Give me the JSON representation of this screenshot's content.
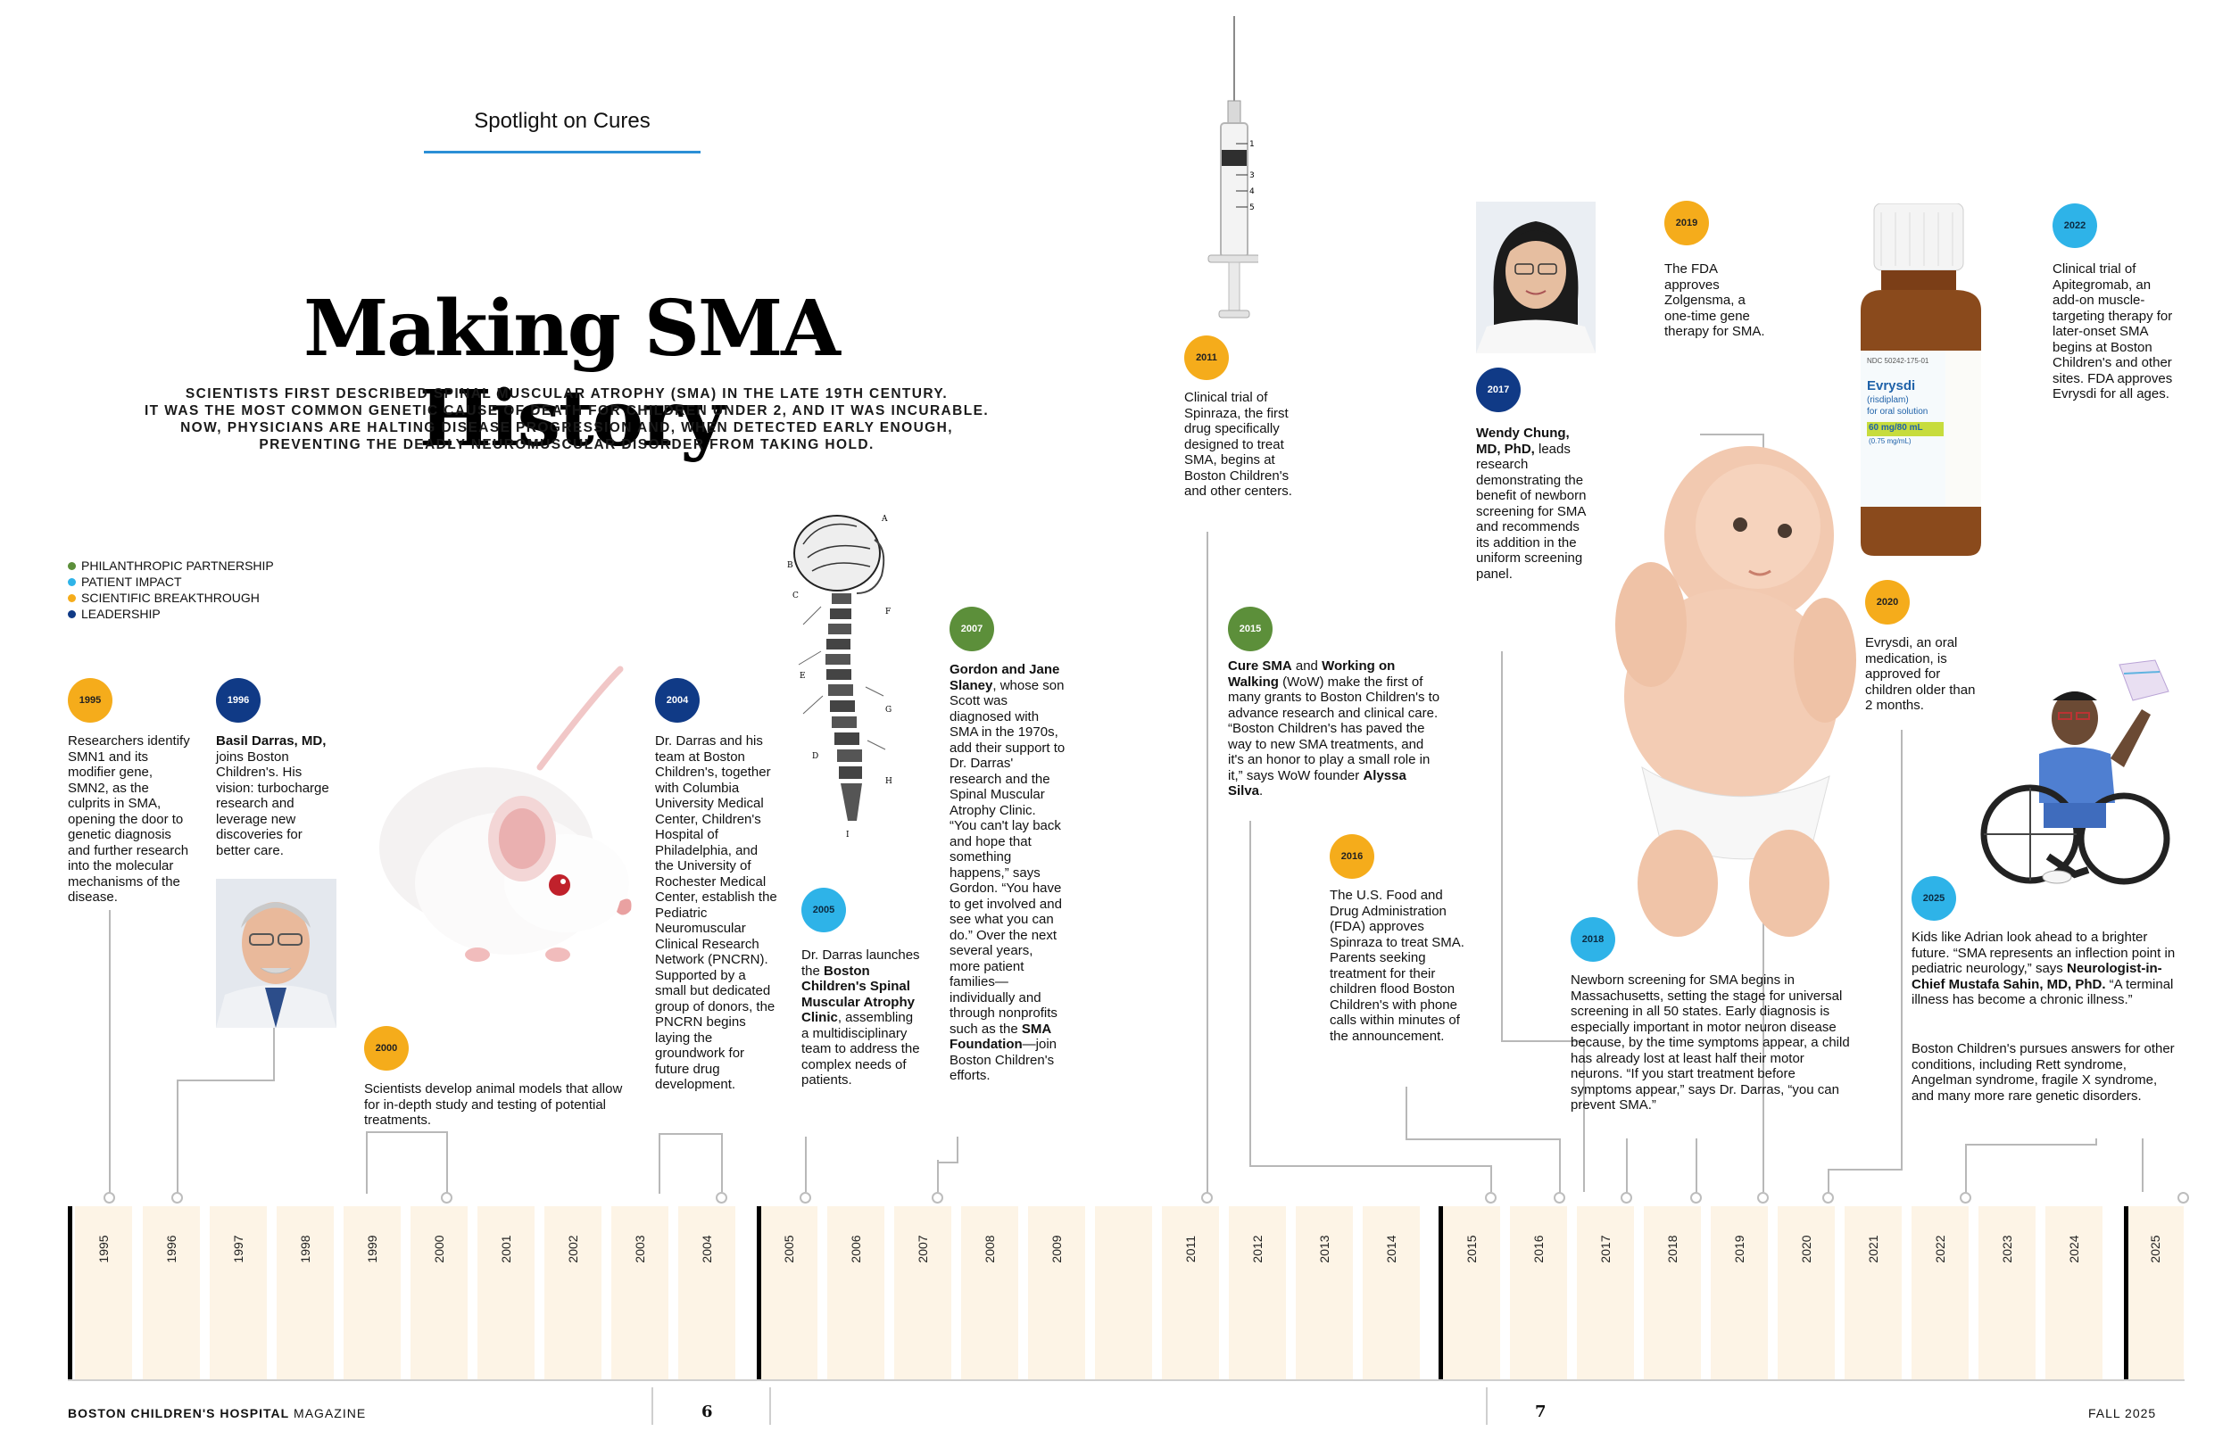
{
  "header": {
    "section": "Spotlight on Cures"
  },
  "title": "Making SMA History",
  "intro": {
    "line1_pre": "SCIENTISTS FIRST DESCRIBED ",
    "line1_bold": "SPINAL MUSCULAR ATROPHY",
    "line1_post": " (SMA) IN THE LATE 19TH CENTURY.",
    "line2": "IT WAS THE MOST COMMON GENETIC CAUSE OF DEATH FOR CHILDREN UNDER 2, AND IT WAS INCURABLE.",
    "line3": "NOW, PHYSICIANS ARE HALTING DISEASE PROGRESSION AND, WHEN DETECTED EARLY ENOUGH,",
    "line4": "PREVENTING THE DEADLY NEUROMUSCULAR DISORDER FROM TAKING HOLD."
  },
  "legend": [
    {
      "label": "PHILANTHROPIC PARTNERSHIP",
      "color": "#5c8f3a"
    },
    {
      "label": "PATIENT IMPACT",
      "color": "#2eb3e8"
    },
    {
      "label": "SCIENTIFIC BREAKTHROUGH",
      "color": "#f5ac1b"
    },
    {
      "label": "LEADERSHIP",
      "color": "#103a86"
    }
  ],
  "events": {
    "e1995": {
      "year": "1995",
      "text": "Researchers identify SMN1 and its modifier gene, SMN2, as the culprits in SMA, opening the door to genetic diagnosis and further research into the molecular mechanisms of the disease."
    },
    "e1996": {
      "year": "1996",
      "bold": "Basil Darras, MD,",
      "text": " joins Boston Children's. His vision: turbocharge research and leverage new discoveries for better care."
    },
    "e2000": {
      "year": "2000",
      "text": "Scientists develop animal models that allow for in-depth study and testing of potential treatments."
    },
    "e2004": {
      "year": "2004",
      "text": "Dr. Darras and his team at Boston Children's, together with Columbia University Medical Center, Children's Hospital of Philadelphia, and the University of Rochester Medical Center, establish the Pediatric Neuromuscular Clinical Research Network (PNCRN). Supported by a small but dedicated group of donors, the PNCRN begins laying the groundwork for future drug development."
    },
    "e2005": {
      "year": "2005",
      "pre": "Dr. Darras launches the ",
      "bold": "Boston Children's Spinal Muscular Atrophy Clinic",
      "post": ", assembling a multidisciplinary team to address the complex needs of patients."
    },
    "e2007": {
      "year": "2007",
      "bold": "Gordon and Jane Slaney",
      "pre": ", whose son Scott was diagnosed with SMA in the 1970s, add their support to Dr. Darras' research and the Spinal Muscular Atrophy Clinic. “You can't lay back and hope that something happens,” says Gordon. “You have to get involved and see what you can do.” Over the next several years, more patient families—individually and through nonprofits such as the ",
      "bold2": "SMA Foundation",
      "post": "—join Boston Children's efforts."
    },
    "e2011": {
      "year": "2011",
      "text": "Clinical trial of Spinraza, the first drug specifically designed to treat SMA, begins at Boston Children's and other centers."
    },
    "e2015": {
      "year": "2015",
      "bold": "Cure SMA",
      "mid": " and ",
      "bold2": "Working on Walking",
      "pre": " (WoW) make the first of many grants to Boston Children's to advance research and clinical care. “Boston Children's has paved the way to new SMA treatments, and it's an honor to play a small role in it,” says WoW founder ",
      "bold3": "Alyssa Silva",
      "post": "."
    },
    "e2016": {
      "year": "2016",
      "text": "The U.S. Food and Drug Administration (FDA) approves Spinraza to treat SMA. Parents seeking treatment for their children flood Boston Children's with phone calls within minutes of the announcement."
    },
    "e2017": {
      "year": "2017",
      "bold": "Wendy Chung, MD, PhD,",
      "text": " leads research demonstrating the benefit of newborn screening for SMA and recommends its addition in the uniform screening panel."
    },
    "e2018": {
      "year": "2018",
      "text": "Newborn screening for SMA begins in Massachusetts, setting the stage for universal screening in all 50 states. Early diagnosis is especially important in motor neuron disease because, by the time symptoms appear, a child has already lost at least half their motor neurons. “If you start treatment before symptoms appear,” says Dr. Darras, “you can prevent SMA.”"
    },
    "e2019": {
      "year": "2019",
      "text": "The FDA approves Zolgensma, a one-time gene therapy for SMA."
    },
    "e2020": {
      "year": "2020",
      "text": "Evrysdi, an oral medication, is approved for children older than 2 months."
    },
    "e2022": {
      "year": "2022",
      "text": "Clinical trial of Apitegromab, an add-on muscle-targeting therapy for later-onset SMA begins at Boston Children's and other sites. FDA approves Evrysdi for all ages."
    },
    "e2025": {
      "year": "2025",
      "pre": "Kids like Adrian look ahead to a brighter future. “SMA represents an inflection point in pediatric neurology,” says ",
      "bold": "Neurologist-in-Chief Mustafa Sahin, MD, PhD.",
      "post": " “A terminal illness has become a chronic illness.”",
      "p2": "Boston Children's pursues answers for other conditions, including Rett syndrome, Angelman syndrome, fragile X syndrome, and many more rare genetic disorders."
    }
  },
  "bottle": {
    "brand": "Evrysdi",
    "generic": "(risdiplam)",
    "form": "for oral solution",
    "dose": "60 mg/80 mL",
    "dose2": "(0.75 mg/mL)",
    "ndc": "NDC 50242-175-01"
  },
  "syringe_marks": [
    "1",
    "3",
    "4",
    "5"
  ],
  "spine_letters": [
    "A",
    "B",
    "C",
    "D",
    "E",
    "F",
    "G",
    "H",
    "I"
  ],
  "timeline_years": [
    "1995",
    "1996",
    "1997",
    "1998",
    "1999",
    "2000",
    "2001",
    "2002",
    "2003",
    "2004",
    "2005",
    "2006",
    "2007",
    "2008",
    "2009",
    "",
    "2011",
    "2012",
    "2013",
    "2014",
    "2015",
    "2016",
    "2017",
    "2018",
    "2019",
    "2020",
    "2021",
    "2022",
    "2023",
    "2024",
    "2025"
  ],
  "footer": {
    "magazine_bold": "BOSTON CHILDREN'S HOSPITAL",
    "magazine": " MAGAZINE",
    "page_left": "6",
    "page_right": "7",
    "issue": "FALL 2025"
  }
}
